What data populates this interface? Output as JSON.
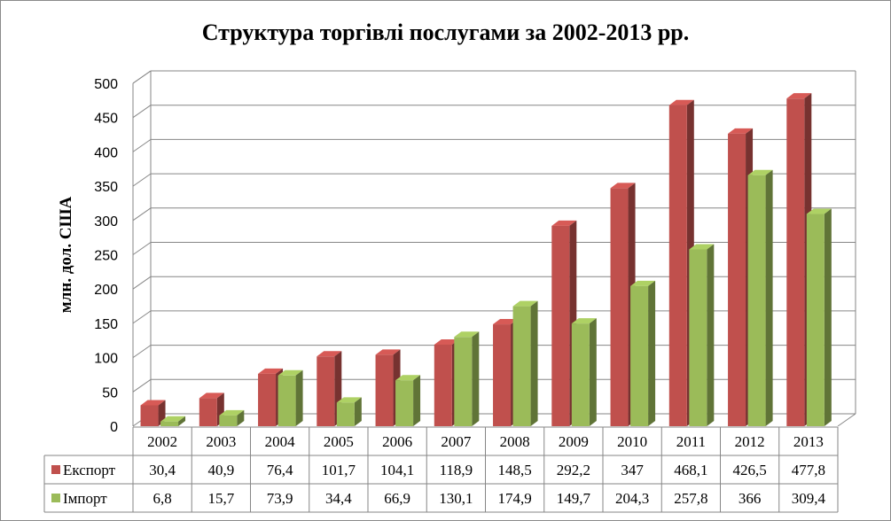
{
  "chart_data": {
    "type": "bar",
    "title": "Структура торгівлі послугами за 2002-2013 рр.",
    "ylabel": "млн. дол. США",
    "xlabel": "",
    "ylim": [
      0,
      500
    ],
    "yticks": [
      0,
      50,
      100,
      150,
      200,
      250,
      300,
      350,
      400,
      450,
      500
    ],
    "grid": true,
    "legend": "data-table-left",
    "categories": [
      "2002",
      "2003",
      "2004",
      "2005",
      "2006",
      "2007",
      "2008",
      "2009",
      "2010",
      "2011",
      "2012",
      "2013"
    ],
    "series": [
      {
        "name": "Експорт",
        "color": "#c0504d",
        "values": [
          30.4,
          40.9,
          76.4,
          101.7,
          104.1,
          118.9,
          148.5,
          292.2,
          347,
          468.1,
          426.5,
          477.8
        ],
        "labels": [
          "30,4",
          "40,9",
          "76,4",
          "101,7",
          "104,1",
          "118,9",
          "148,5",
          "292,2",
          "347",
          "468,1",
          "426,5",
          "477,8"
        ]
      },
      {
        "name": "Імпорт",
        "color": "#9bbb59",
        "values": [
          6.8,
          15.7,
          73.9,
          34.4,
          66.9,
          130.1,
          174.9,
          149.7,
          204.3,
          257.8,
          366,
          309.4
        ],
        "labels": [
          "6,8",
          "15,7",
          "73,9",
          "34,4",
          "66,9",
          "130,1",
          "174,9",
          "149,7",
          "204,3",
          "257,8",
          "366",
          "309,4"
        ]
      }
    ]
  }
}
